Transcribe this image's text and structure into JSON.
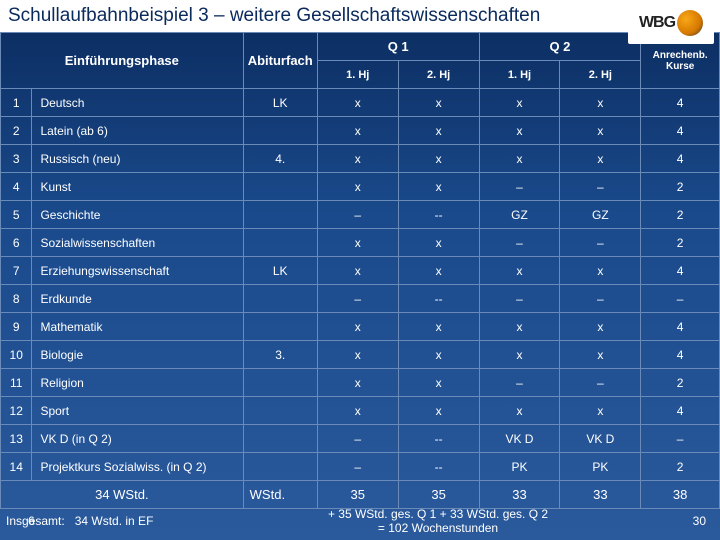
{
  "title": "Schullaufbahnbeispiel 3 – weitere Gesellschaftswissenschaften",
  "logo_text": "WBG",
  "headers": {
    "einf": "Einführungsphase",
    "abi": "Abiturfach",
    "q1": "Q 1",
    "q2": "Q 2",
    "hj1": "1. Hj",
    "hj2": "2. Hj",
    "anr_line1": "Anrechenb.",
    "anr_line2": "Kurse"
  },
  "rows": [
    {
      "n": "1",
      "subject": "Deutsch",
      "abi": "LK",
      "q1a": "x",
      "q1b": "x",
      "q2a": "x",
      "q2b": "x",
      "anr": "4"
    },
    {
      "n": "2",
      "subject": "Latein (ab 6)",
      "abi": "",
      "q1a": "x",
      "q1b": "x",
      "q2a": "x",
      "q2b": "x",
      "anr": "4"
    },
    {
      "n": "3",
      "subject": "Russisch (neu)",
      "abi": "4.",
      "q1a": "x",
      "q1b": "x",
      "q2a": "x",
      "q2b": "x",
      "anr": "4"
    },
    {
      "n": "4",
      "subject": "Kunst",
      "abi": "",
      "q1a": "x",
      "q1b": "x",
      "q2a": "–",
      "q2b": "–",
      "anr": "2"
    },
    {
      "n": "5",
      "subject": "Geschichte",
      "abi": "",
      "q1a": "–",
      "q1b": "--",
      "q2a": "GZ",
      "q2b": "GZ",
      "anr": "2"
    },
    {
      "n": "6",
      "subject": "Sozialwissenschaften",
      "abi": "",
      "q1a": "x",
      "q1b": "x",
      "q2a": "–",
      "q2b": "–",
      "anr": "2"
    },
    {
      "n": "7",
      "subject": "Erziehungswissenschaft",
      "abi": "LK",
      "q1a": "x",
      "q1b": "x",
      "q2a": "x",
      "q2b": "x",
      "anr": "4"
    },
    {
      "n": "8",
      "subject": "Erdkunde",
      "abi": "",
      "q1a": "–",
      "q1b": "--",
      "q2a": "–",
      "q2b": "–",
      "anr": "–"
    },
    {
      "n": "9",
      "subject": "Mathematik",
      "abi": "",
      "q1a": "x",
      "q1b": "x",
      "q2a": "x",
      "q2b": "x",
      "anr": "4"
    },
    {
      "n": "10",
      "subject": "Biologie",
      "abi": "3.",
      "q1a": "x",
      "q1b": "x",
      "q2a": "x",
      "q2b": "x",
      "anr": "4"
    },
    {
      "n": "11",
      "subject": "Religion",
      "abi": "",
      "q1a": "x",
      "q1b": "x",
      "q2a": "–",
      "q2b": "–",
      "anr": "2"
    },
    {
      "n": "12",
      "subject": "Sport",
      "abi": "",
      "q1a": "x",
      "q1b": "x",
      "q2a": "x",
      "q2b": "x",
      "anr": "4"
    },
    {
      "n": "13",
      "subject": "VK D (in Q 2)",
      "abi": "",
      "q1a": "–",
      "q1b": "--",
      "q2a": "VK D",
      "q2b": "VK D",
      "anr": "–"
    },
    {
      "n": "14",
      "subject": "Projektkurs Sozialwiss. (in Q 2)",
      "abi": "",
      "q1a": "–",
      "q1b": "--",
      "q2a": "PK",
      "q2b": "PK",
      "anr": "2"
    }
  ],
  "summary": {
    "label": "34 WStd.",
    "abi": "WStd.",
    "q1a": "35",
    "q1b": "35",
    "q2a": "33",
    "q2b": "33",
    "anr": "38"
  },
  "footer": {
    "left": "Insgesamt:   34 Wstd. in EF",
    "slide_prefix": "Insg",
    "slide_no": "6",
    "center_line1": "+ 35 WStd. ges. Q 1   + 33 WStd. ges. Q 2",
    "center_line2": "= 102 Wochenstunden",
    "page": "30"
  },
  "colors": {
    "border": "#6a8ab8",
    "text": "#ffffff"
  }
}
